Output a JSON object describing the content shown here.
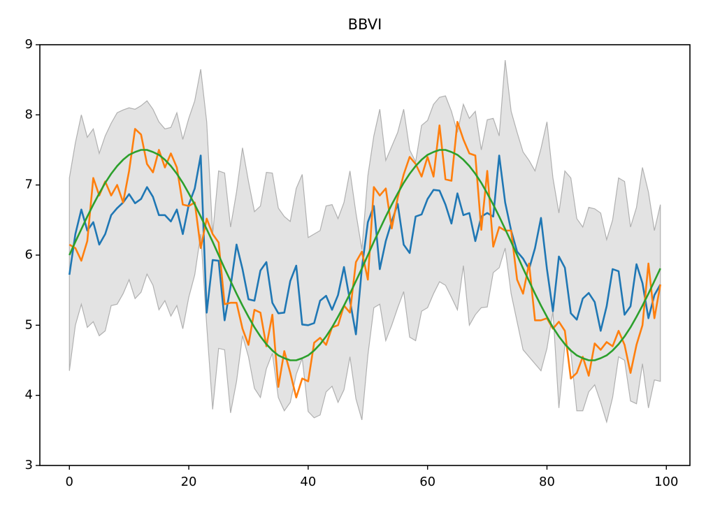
{
  "chart_data": {
    "type": "line",
    "title": "BBVI",
    "x": [
      0,
      1,
      2,
      3,
      4,
      5,
      6,
      7,
      8,
      9,
      10,
      11,
      12,
      13,
      14,
      15,
      16,
      17,
      18,
      19,
      20,
      21,
      22,
      23,
      24,
      25,
      26,
      27,
      28,
      29,
      30,
      31,
      32,
      33,
      34,
      35,
      36,
      37,
      38,
      39,
      40,
      41,
      42,
      43,
      44,
      45,
      46,
      47,
      48,
      49,
      50,
      51,
      52,
      53,
      54,
      55,
      56,
      57,
      58,
      59,
      60,
      61,
      62,
      63,
      64,
      65,
      66,
      67,
      68,
      69,
      70,
      71,
      72,
      73,
      74,
      75,
      76,
      77,
      78,
      79,
      80,
      81,
      82,
      83,
      84,
      85,
      86,
      87,
      88,
      89,
      90,
      91,
      92,
      93,
      94,
      95,
      96,
      97,
      98,
      99
    ],
    "band": {
      "color": "#b0b0b0",
      "upper": [
        7.1,
        7.6,
        8.0,
        7.68,
        7.8,
        7.45,
        7.7,
        7.88,
        8.03,
        8.07,
        8.1,
        8.08,
        8.13,
        8.2,
        8.08,
        7.9,
        7.8,
        7.82,
        8.03,
        7.65,
        7.95,
        8.2,
        8.65,
        7.9,
        6.3,
        7.2,
        7.17,
        6.4,
        6.9,
        7.53,
        7.05,
        6.62,
        6.7,
        7.18,
        7.17,
        6.67,
        6.55,
        6.48,
        6.95,
        7.15,
        6.25,
        6.3,
        6.35,
        6.7,
        6.72,
        6.52,
        6.75,
        7.2,
        6.6,
        6.08,
        7.13,
        7.7,
        8.08,
        7.35,
        7.55,
        7.75,
        8.08,
        7.5,
        7.33,
        7.85,
        7.92,
        8.15,
        8.25,
        8.27,
        8.05,
        7.75,
        8.15,
        7.95,
        8.05,
        7.5,
        7.93,
        7.95,
        7.7,
        8.78,
        8.05,
        7.75,
        7.47,
        7.35,
        7.2,
        7.52,
        7.9,
        7.1,
        6.6,
        7.2,
        7.1,
        6.52,
        6.4,
        6.68,
        6.66,
        6.6,
        6.22,
        6.5,
        7.1,
        7.05,
        6.4,
        6.68,
        7.25,
        6.9,
        6.35,
        6.72
      ],
      "lower": [
        4.35,
        5.0,
        5.3,
        4.97,
        5.05,
        4.85,
        4.92,
        5.28,
        5.3,
        5.45,
        5.65,
        5.38,
        5.47,
        5.73,
        5.57,
        5.22,
        5.35,
        5.13,
        5.28,
        4.95,
        5.4,
        5.72,
        6.3,
        5.0,
        3.8,
        4.67,
        4.65,
        3.75,
        4.2,
        4.85,
        4.55,
        4.1,
        3.97,
        4.38,
        4.6,
        3.97,
        3.78,
        3.9,
        4.3,
        4.53,
        3.77,
        3.68,
        3.72,
        4.05,
        4.13,
        3.9,
        4.08,
        4.55,
        3.95,
        3.65,
        4.57,
        5.25,
        5.3,
        4.78,
        5.0,
        5.25,
        5.48,
        4.83,
        4.78,
        5.2,
        5.25,
        5.45,
        5.62,
        5.57,
        5.4,
        5.22,
        5.85,
        5.0,
        5.15,
        5.25,
        5.26,
        5.75,
        5.82,
        6.1,
        5.45,
        5.05,
        4.65,
        4.55,
        4.45,
        4.35,
        4.67,
        5.2,
        3.82,
        4.72,
        4.62,
        3.78,
        3.78,
        4.05,
        4.15,
        3.9,
        3.62,
        3.97,
        4.55,
        4.5,
        3.92,
        3.88,
        4.45,
        3.82,
        4.22,
        4.2
      ]
    },
    "series": [
      {
        "color": "#1f77b4",
        "values": [
          5.72,
          6.3,
          6.65,
          6.35,
          6.47,
          6.15,
          6.3,
          6.57,
          6.67,
          6.75,
          6.87,
          6.74,
          6.8,
          6.97,
          6.83,
          6.57,
          6.57,
          6.48,
          6.65,
          6.3,
          6.72,
          6.95,
          7.42,
          5.18,
          5.93,
          5.92,
          5.07,
          5.55,
          6.15,
          5.8,
          5.37,
          5.35,
          5.78,
          5.9,
          5.32,
          5.17,
          5.18,
          5.63,
          5.85,
          5.01,
          5.0,
          5.03,
          5.35,
          5.42,
          5.22,
          5.43,
          5.83,
          5.35,
          4.87,
          5.82,
          6.47,
          6.7,
          5.8,
          6.2,
          6.48,
          6.73,
          6.15,
          6.03,
          6.55,
          6.58,
          6.8,
          6.93,
          6.92,
          6.72,
          6.45,
          6.88,
          6.57,
          6.6,
          6.2,
          6.55,
          6.6,
          6.55,
          7.42,
          6.75,
          6.35,
          6.05,
          5.95,
          5.8,
          6.1,
          6.53,
          5.8,
          5.2,
          5.98,
          5.82,
          5.17,
          5.08,
          5.38,
          5.46,
          5.33,
          4.92,
          5.27,
          5.8,
          5.77,
          5.15,
          5.27,
          5.87,
          5.6,
          5.1,
          5.43,
          5.58
        ]
      },
      {
        "color": "#ff7f0e",
        "values": [
          6.15,
          6.1,
          5.92,
          6.2,
          7.1,
          6.85,
          7.05,
          6.85,
          7.0,
          6.75,
          7.2,
          7.8,
          7.72,
          7.3,
          7.18,
          7.5,
          7.25,
          7.45,
          7.25,
          6.72,
          6.7,
          6.75,
          6.1,
          6.52,
          6.3,
          6.18,
          5.3,
          5.32,
          5.32,
          4.95,
          4.72,
          5.22,
          5.18,
          4.7,
          5.15,
          4.12,
          4.63,
          4.32,
          3.97,
          4.24,
          4.2,
          4.75,
          4.82,
          4.72,
          4.97,
          5.0,
          5.28,
          5.18,
          5.9,
          6.05,
          5.65,
          6.97,
          6.85,
          6.95,
          6.38,
          6.82,
          7.15,
          7.4,
          7.3,
          7.12,
          7.4,
          7.12,
          7.85,
          7.08,
          7.06,
          7.9,
          7.65,
          7.45,
          7.42,
          6.36,
          7.2,
          6.12,
          6.4,
          6.35,
          6.35,
          5.65,
          5.45,
          5.88,
          5.07,
          5.07,
          5.1,
          4.95,
          5.05,
          4.92,
          4.24,
          4.32,
          4.55,
          4.28,
          4.74,
          4.65,
          4.76,
          4.7,
          4.92,
          4.72,
          4.32,
          4.72,
          5.0,
          5.88,
          5.1,
          5.58
        ]
      },
      {
        "color": "#2ca02c",
        "values": [
          6.0,
          6.19,
          6.37,
          6.55,
          6.72,
          6.88,
          7.03,
          7.16,
          7.27,
          7.36,
          7.43,
          7.47,
          7.5,
          7.5,
          7.47,
          7.43,
          7.36,
          7.27,
          7.16,
          7.03,
          6.88,
          6.72,
          6.55,
          6.37,
          6.19,
          6.0,
          5.81,
          5.63,
          5.45,
          5.28,
          5.12,
          4.97,
          4.84,
          4.73,
          4.64,
          4.57,
          4.53,
          4.5,
          4.5,
          4.53,
          4.57,
          4.64,
          4.73,
          4.84,
          4.97,
          5.12,
          5.28,
          5.45,
          5.63,
          5.81,
          6.0,
          6.19,
          6.37,
          6.55,
          6.72,
          6.88,
          7.03,
          7.16,
          7.27,
          7.36,
          7.43,
          7.47,
          7.5,
          7.5,
          7.47,
          7.43,
          7.36,
          7.27,
          7.16,
          7.03,
          6.88,
          6.72,
          6.55,
          6.37,
          6.19,
          6.0,
          5.81,
          5.63,
          5.45,
          5.28,
          5.12,
          4.97,
          4.84,
          4.73,
          4.64,
          4.57,
          4.53,
          4.5,
          4.5,
          4.53,
          4.57,
          4.64,
          4.73,
          4.84,
          4.97,
          5.12,
          5.28,
          5.45,
          5.63,
          5.81
        ]
      }
    ],
    "xlim": [
      -4.95,
      103.95
    ],
    "xticks": [
      0,
      20,
      40,
      60,
      80,
      100
    ],
    "ylim": [
      3,
      9
    ],
    "yticks": [
      3,
      4,
      5,
      6,
      7,
      8,
      9
    ]
  }
}
